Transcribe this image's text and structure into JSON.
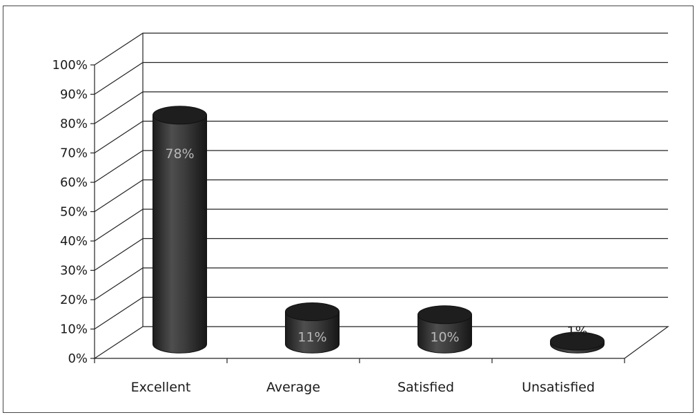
{
  "chart_data": {
    "type": "bar",
    "style": "3d-cylinder",
    "categories": [
      "Excellent",
      "Average",
      "Satisfied",
      "Unsatisfied"
    ],
    "values": [
      78,
      11,
      10,
      1
    ],
    "data_labels": [
      "78%",
      "11%",
      "10%",
      "1%"
    ],
    "y_ticks": [
      "0%",
      "10%",
      "20%",
      "30%",
      "40%",
      "50%",
      "60%",
      "70%",
      "80%",
      "90%",
      "100%"
    ],
    "ylim": [
      0,
      100
    ],
    "grid": true,
    "legend": "none",
    "colors": {
      "bar": "#3a3a3a",
      "bar_light": "#5a5a5a",
      "bar_dark": "#1e1e1e",
      "grid": "#222222",
      "wall": "#ffffff"
    }
  }
}
